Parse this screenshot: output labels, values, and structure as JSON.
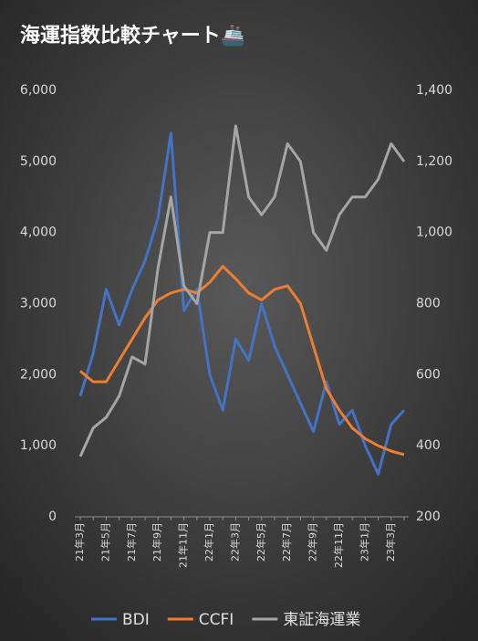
{
  "chart_data": {
    "type": "line",
    "title": "海運指数比較チャート🚢",
    "categories": [
      "21年3月",
      null,
      "21年5月",
      null,
      "21年7月",
      null,
      "21年9月",
      null,
      "21年11月",
      null,
      "22年1月",
      null,
      "22年3月",
      null,
      "22年5月",
      null,
      "22年7月",
      null,
      "22年9月",
      null,
      "22年11月",
      null,
      "23年1月",
      null,
      "23年3月",
      null
    ],
    "series": [
      {
        "name": "BDI",
        "color": "#4472c4",
        "values": [
          1700,
          2300,
          3200,
          2700,
          3200,
          3600,
          4200,
          5400,
          2900,
          3200,
          2000,
          1500,
          2500,
          2200,
          3000,
          2400,
          2000,
          1600,
          1200,
          1900,
          1300,
          1500,
          1000,
          600,
          1300,
          1500
        ]
      },
      {
        "name": "CCFI",
        "color": "#ed7d31",
        "axis": "y2",
        "values": [
          610,
          580,
          580,
          640,
          700,
          760,
          810,
          830,
          840,
          830,
          860,
          905,
          870,
          830,
          810,
          840,
          850,
          800,
          680,
          560,
          500,
          450,
          420,
          400,
          385,
          375
        ]
      },
      {
        "name": "東証海運業",
        "color": "#a5a5a5",
        "axis": "y2",
        "values": [
          370,
          450,
          480,
          540,
          650,
          630,
          900,
          1100,
          850,
          800,
          1000,
          1000,
          1300,
          1100,
          1050,
          1100,
          1250,
          1200,
          1000,
          950,
          1050,
          1100,
          1100,
          1150,
          1250,
          1200
        ]
      }
    ],
    "ylim": [
      0,
      6000
    ],
    "yticks": [
      0,
      {
        "value": 1000,
        "label": "1,000"
      },
      {
        "value": 2000,
        "label": "2,000"
      },
      {
        "value": 3000,
        "label": "3,000"
      },
      {
        "value": 4000,
        "label": "4,000"
      },
      {
        "value": 5000,
        "label": "5,000"
      },
      {
        "value": 6000,
        "label": "6,000"
      }
    ],
    "y2lim": [
      200,
      1400
    ],
    "y2ticks": [
      200,
      400,
      600,
      800,
      {
        "value": 1000,
        "label": "1,000"
      },
      {
        "value": 1200,
        "label": "1,200"
      },
      {
        "value": 1400,
        "label": "1,400"
      }
    ],
    "legend": "bottom"
  }
}
